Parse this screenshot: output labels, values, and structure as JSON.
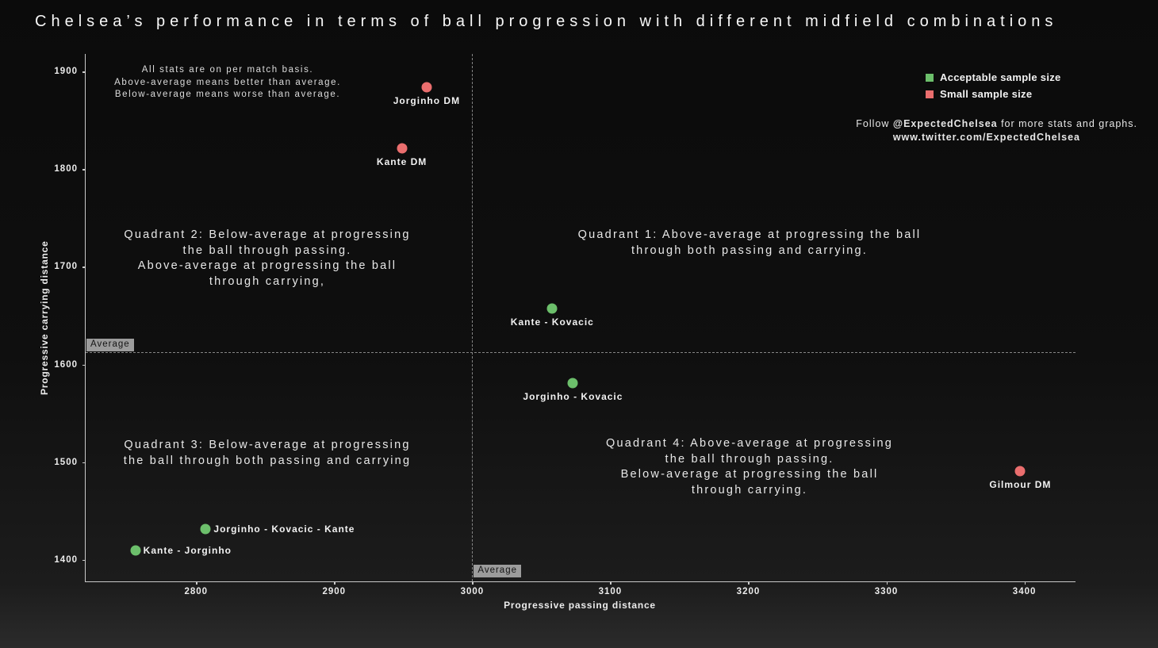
{
  "annotations": {
    "stats_note": "All stats are on per match basis.\nAbove-average means better than average.\nBelow-average means worse than average.",
    "quadrant1": "Quadrant 1: Above-average at progressing the ball\nthrough both passing and carrying.",
    "quadrant2": "Quadrant 2: Below-average at progressing\nthe ball through passing.\nAbove-average at progressing the ball\nthrough carrying,",
    "quadrant3": "Quadrant 3: Below-average at progressing\nthe ball through both passing and carrying",
    "quadrant4": "Quadrant 4: Above-average at progressing\nthe ball through passing.\nBelow-average at progressing the ball\nthrough carrying.",
    "follow_prefix": "Follow ",
    "follow_handle": "@ExpectedChelsea",
    "follow_suffix": " for more stats and graphs.",
    "follow_url": "www.twitter.com/ExpectedChelsea"
  },
  "legend": {
    "items": [
      {
        "label": "Acceptable sample size",
        "color": "#6cbf6b"
      },
      {
        "label": "Small sample size",
        "color": "#ea6e6e"
      }
    ]
  },
  "chart_data": {
    "type": "scatter",
    "title": "Chelsea’s performance in terms of ball progression with different midfield combinations",
    "xlabel": "Progressive passing distance",
    "ylabel": "Progressive carrying distance",
    "xlim": [
      2720,
      3437
    ],
    "ylim": [
      1378,
      1918
    ],
    "x_ticks": [
      2800,
      2900,
      3000,
      3100,
      3200,
      3300,
      3400
    ],
    "y_ticks": [
      1400,
      1500,
      1600,
      1700,
      1800,
      1900
    ],
    "grid": false,
    "legend_position": "top-right",
    "average_x": 3000,
    "average_y": 1613,
    "average_label": "Average",
    "series": [
      {
        "name": "Acceptable sample size",
        "color": "#6cbf6b",
        "points": [
          {
            "label": "Kante - Kovacic",
            "x": 3058,
            "y": 1657,
            "label_pos": "below"
          },
          {
            "label": "Jorginho - Kovacic",
            "x": 3073,
            "y": 1581,
            "label_pos": "below"
          },
          {
            "label": "Jorginho - Kovacic - Kante",
            "x": 2807,
            "y": 1432,
            "label_pos": "right"
          },
          {
            "label": "Kante - Jorginho",
            "x": 2756,
            "y": 1410,
            "label_pos": "right"
          }
        ]
      },
      {
        "name": "Small sample size",
        "color": "#ea6e6e",
        "points": [
          {
            "label": "Jorginho DM",
            "x": 2967,
            "y": 1884,
            "label_pos": "below"
          },
          {
            "label": "Kante DM",
            "x": 2949,
            "y": 1821,
            "label_pos": "below"
          },
          {
            "label": "Gilmour DM",
            "x": 3397,
            "y": 1491,
            "label_pos": "below"
          }
        ]
      }
    ]
  }
}
